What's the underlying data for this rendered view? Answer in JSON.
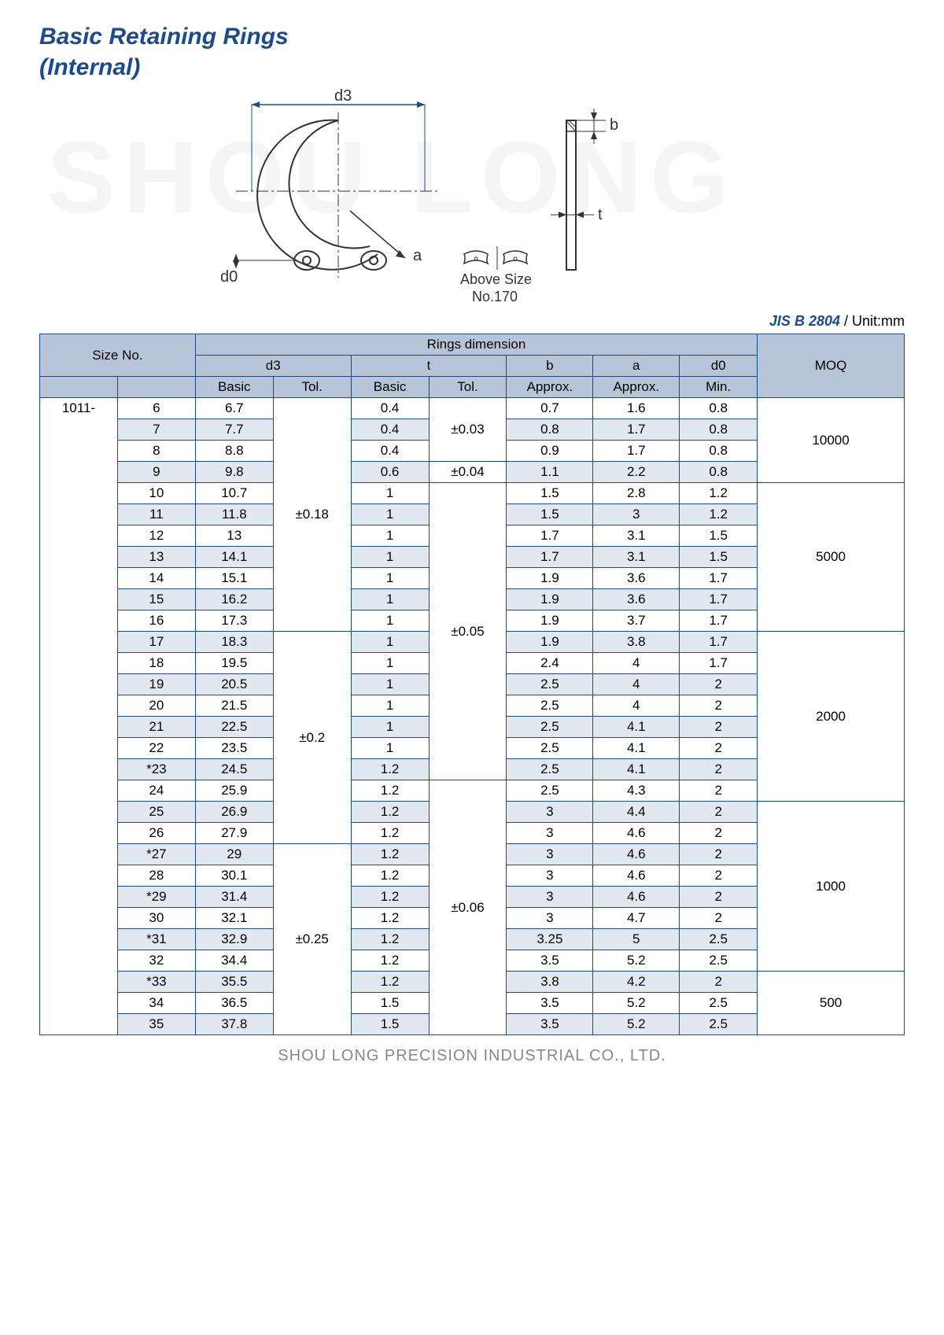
{
  "title_line1": "Basic Retaining Rings",
  "title_line2": "(Internal)",
  "watermark": "SHOU LONG",
  "diagram": {
    "d3": "d3",
    "d0": "d0",
    "a": "a",
    "b": "b",
    "t": "t",
    "above_size": "Above Size",
    "no170": "No.170"
  },
  "standard": "JIS B 2804",
  "unit_label": " / Unit:mm",
  "headers": {
    "size_no": "Size No.",
    "rings_dim": "Rings dimension",
    "moq": "MOQ",
    "d3": "d3",
    "t": "t",
    "b": "b",
    "a": "a",
    "d0": "d0",
    "basic": "Basic",
    "tol": "Tol.",
    "approx": "Approx.",
    "min": "Min."
  },
  "prefix": "1011-",
  "rows": [
    {
      "alt": 0,
      "size": "6",
      "d3b": "6.7",
      "tb": "0.4",
      "b": "0.7",
      "a": "1.6",
      "d0": "0.8"
    },
    {
      "alt": 1,
      "size": "7",
      "d3b": "7.7",
      "tb": "0.4",
      "b": "0.8",
      "a": "1.7",
      "d0": "0.8"
    },
    {
      "alt": 0,
      "size": "8",
      "d3b": "8.8",
      "tb": "0.4",
      "b": "0.9",
      "a": "1.7",
      "d0": "0.8"
    },
    {
      "alt": 1,
      "size": "9",
      "d3b": "9.8",
      "tb": "0.6",
      "b": "1.1",
      "a": "2.2",
      "d0": "0.8"
    },
    {
      "alt": 0,
      "size": "10",
      "d3b": "10.7",
      "tb": "1",
      "b": "1.5",
      "a": "2.8",
      "d0": "1.2"
    },
    {
      "alt": 1,
      "size": "11",
      "d3b": "11.8",
      "tb": "1",
      "b": "1.5",
      "a": "3",
      "d0": "1.2"
    },
    {
      "alt": 0,
      "size": "12",
      "d3b": "13",
      "tb": "1",
      "b": "1.7",
      "a": "3.1",
      "d0": "1.5"
    },
    {
      "alt": 1,
      "size": "13",
      "d3b": "14.1",
      "tb": "1",
      "b": "1.7",
      "a": "3.1",
      "d0": "1.5"
    },
    {
      "alt": 0,
      "size": "14",
      "d3b": "15.1",
      "tb": "1",
      "b": "1.9",
      "a": "3.6",
      "d0": "1.7"
    },
    {
      "alt": 1,
      "size": "15",
      "d3b": "16.2",
      "tb": "1",
      "b": "1.9",
      "a": "3.6",
      "d0": "1.7"
    },
    {
      "alt": 0,
      "size": "16",
      "d3b": "17.3",
      "tb": "1",
      "b": "1.9",
      "a": "3.7",
      "d0": "1.7"
    },
    {
      "alt": 1,
      "size": "17",
      "d3b": "18.3",
      "tb": "1",
      "b": "1.9",
      "a": "3.8",
      "d0": "1.7"
    },
    {
      "alt": 0,
      "size": "18",
      "d3b": "19.5",
      "tb": "1",
      "b": "2.4",
      "a": "4",
      "d0": "1.7"
    },
    {
      "alt": 1,
      "size": "19",
      "d3b": "20.5",
      "tb": "1",
      "b": "2.5",
      "a": "4",
      "d0": "2"
    },
    {
      "alt": 0,
      "size": "20",
      "d3b": "21.5",
      "tb": "1",
      "b": "2.5",
      "a": "4",
      "d0": "2"
    },
    {
      "alt": 1,
      "size": "21",
      "d3b": "22.5",
      "tb": "1",
      "b": "2.5",
      "a": "4.1",
      "d0": "2"
    },
    {
      "alt": 0,
      "size": "22",
      "d3b": "23.5",
      "tb": "1",
      "b": "2.5",
      "a": "4.1",
      "d0": "2"
    },
    {
      "alt": 1,
      "size": "*23",
      "d3b": "24.5",
      "tb": "1.2",
      "b": "2.5",
      "a": "4.1",
      "d0": "2"
    },
    {
      "alt": 0,
      "size": "24",
      "d3b": "25.9",
      "tb": "1.2",
      "b": "2.5",
      "a": "4.3",
      "d0": "2"
    },
    {
      "alt": 1,
      "size": "25",
      "d3b": "26.9",
      "tb": "1.2",
      "b": "3",
      "a": "4.4",
      "d0": "2"
    },
    {
      "alt": 0,
      "size": "26",
      "d3b": "27.9",
      "tb": "1.2",
      "b": "3",
      "a": "4.6",
      "d0": "2"
    },
    {
      "alt": 1,
      "size": "*27",
      "d3b": "29",
      "tb": "1.2",
      "b": "3",
      "a": "4.6",
      "d0": "2"
    },
    {
      "alt": 0,
      "size": "28",
      "d3b": "30.1",
      "tb": "1.2",
      "b": "3",
      "a": "4.6",
      "d0": "2"
    },
    {
      "alt": 1,
      "size": "*29",
      "d3b": "31.4",
      "tb": "1.2",
      "b": "3",
      "a": "4.6",
      "d0": "2"
    },
    {
      "alt": 0,
      "size": "30",
      "d3b": "32.1",
      "tb": "1.2",
      "b": "3",
      "a": "4.7",
      "d0": "2"
    },
    {
      "alt": 1,
      "size": "*31",
      "d3b": "32.9",
      "tb": "1.2",
      "b": "3.25",
      "a": "5",
      "d0": "2.5"
    },
    {
      "alt": 0,
      "size": "32",
      "d3b": "34.4",
      "tb": "1.2",
      "b": "3.5",
      "a": "5.2",
      "d0": "2.5"
    },
    {
      "alt": 1,
      "size": "*33",
      "d3b": "35.5",
      "tb": "1.2",
      "b": "3.8",
      "a": "4.2",
      "d0": "2"
    },
    {
      "alt": 0,
      "size": "34",
      "d3b": "36.5",
      "tb": "1.5",
      "b": "3.5",
      "a": "5.2",
      "d0": "2.5"
    },
    {
      "alt": 1,
      "size": "35",
      "d3b": "37.8",
      "tb": "1.5",
      "b": "3.5",
      "a": "5.2",
      "d0": "2.5"
    }
  ],
  "d3_tol_groups": [
    {
      "span": 11,
      "val": "±0.18"
    },
    {
      "span": 10,
      "val": "±0.2"
    },
    {
      "span": 9,
      "val": "±0.25"
    }
  ],
  "t_tol_groups": [
    {
      "span": 3,
      "val": "±0.03"
    },
    {
      "span": 1,
      "val": "±0.04"
    },
    {
      "span": 14,
      "val": "±0.05"
    },
    {
      "span": 12,
      "val": "±0.06"
    }
  ],
  "moq_groups": [
    {
      "span": 4,
      "val": "10000"
    },
    {
      "span": 7,
      "val": "5000"
    },
    {
      "span": 8,
      "val": "2000"
    },
    {
      "span": 8,
      "val": "1000"
    },
    {
      "span": 3,
      "val": "500"
    }
  ],
  "footer": "SHOU LONG PRECISION INDUSTRIAL CO., LTD."
}
